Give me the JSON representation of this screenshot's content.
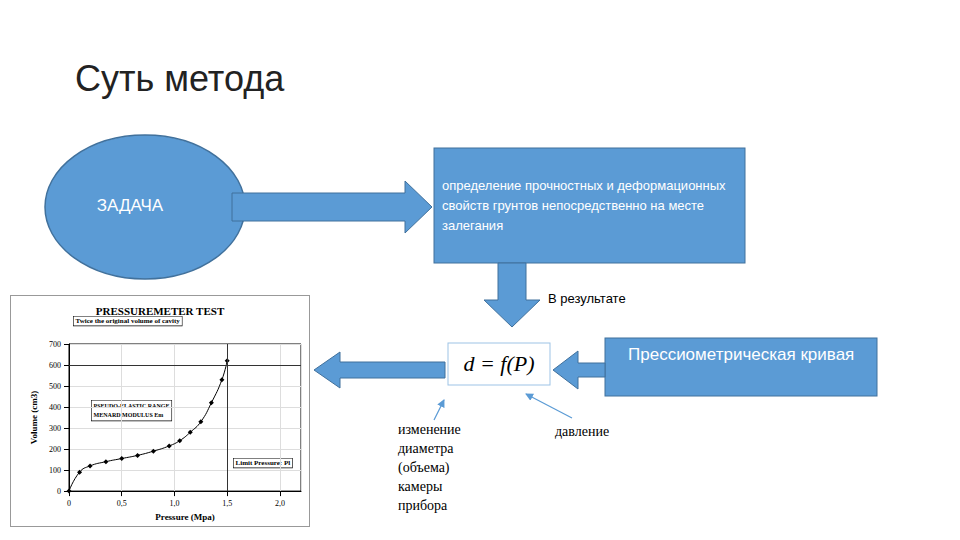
{
  "header": {
    "title": "Суть метода"
  },
  "task": {
    "label": "ЗАДАЧА"
  },
  "goal": {
    "text": "определение прочностных и деформационных свойств грунтов непосредственно на месте залегания"
  },
  "result_label": "В результате",
  "formula": {
    "text": "d = f(P)"
  },
  "curve_label": "Прессиометрическая кривая",
  "formula_parts": [
    {
      "label": "изменение диаметра (объема) камеры прибора"
    },
    {
      "label": "давление"
    }
  ],
  "chart_data": {
    "type": "line",
    "title": "PRESSUREMETER TEST",
    "x_label": "Pressure (Mpa)",
    "y_label": "Volume (cm3)",
    "x": [
      0,
      0.1,
      0.2,
      0.35,
      0.5,
      0.65,
      0.8,
      0.95,
      1.05,
      1.15,
      1.25,
      1.35,
      1.45,
      1.5
    ],
    "values": [
      0,
      90,
      120,
      140,
      155,
      170,
      190,
      215,
      240,
      280,
      330,
      420,
      530,
      620
    ],
    "color": "#000000",
    "marker": "diamond",
    "xlim": [
      0,
      2.2
    ],
    "xticks": [
      0,
      {
        "value": 0.5,
        "label": "0,5"
      },
      {
        "value": 1,
        "label": "1,0"
      },
      {
        "value": 1.5,
        "label": "1,5"
      },
      {
        "value": 2,
        "label": "2,0"
      }
    ],
    "ylim": [
      0,
      700
    ],
    "yticks": [
      0,
      100,
      200,
      300,
      400,
      500,
      600,
      700
    ],
    "grid": true,
    "reference_lines": {
      "volume": 600,
      "pressure": 1.5
    },
    "annotations": [
      "Twice the original volume of cavity",
      "PSEUDO-ELASTIC RANGE\nMENARD MODULUS Em",
      "Limit Pressure: Pl"
    ]
  }
}
